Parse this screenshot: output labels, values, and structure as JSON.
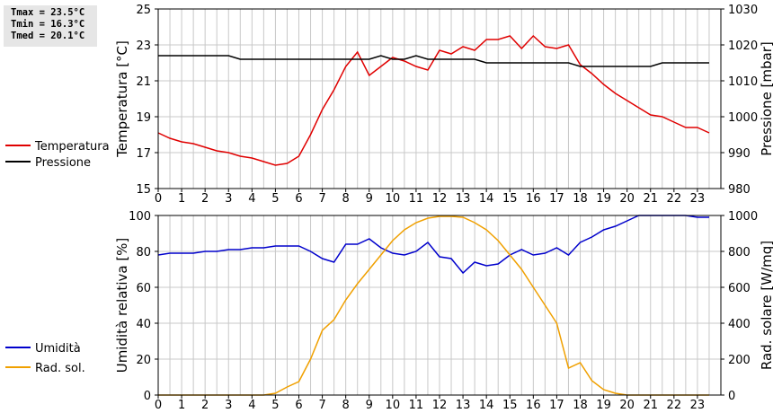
{
  "stats": {
    "tmax": "Tmax = 23.5°C",
    "tmin": "Tmin = 16.3°C",
    "tmed": "Tmed = 20.1°C"
  },
  "colors": {
    "temperatura": "#e00000",
    "pressione": "#000000",
    "umidita": "#0000cc",
    "rad_sol": "#f0a000",
    "grid": "#c8c8c8"
  },
  "chart_data": [
    {
      "type": "line",
      "xlabel": "",
      "ylabel": "Temperatura [°C]",
      "y2label": "Pressione [mbar]",
      "xlim": [
        0,
        24
      ],
      "ylim": [
        15,
        25
      ],
      "y2lim": [
        980,
        1030
      ],
      "x_ticks": [
        "0",
        "1",
        "2",
        "3",
        "4",
        "5",
        "6",
        "7",
        "8",
        "9",
        "10",
        "11",
        "12",
        "13",
        "14",
        "15",
        "16",
        "17",
        "18",
        "19",
        "20",
        "21",
        "22",
        "23"
      ],
      "y_ticks": [
        "15",
        "17",
        "19",
        "21",
        "23",
        "25"
      ],
      "y2_ticks": [
        "980",
        "990",
        "1000",
        "1010",
        "1020",
        "1030"
      ],
      "grid": true,
      "legend_position": "left",
      "series": [
        {
          "name": "Temperatura",
          "axis": "left",
          "x": [
            0,
            0.5,
            1,
            1.5,
            2,
            2.5,
            3,
            3.5,
            4,
            4.5,
            5,
            5.5,
            6,
            6.5,
            7,
            7.5,
            8,
            8.5,
            9,
            9.5,
            10,
            10.5,
            11,
            11.5,
            12,
            12.5,
            13,
            13.5,
            14,
            14.5,
            15,
            15.5,
            16,
            16.5,
            17,
            17.5,
            18,
            18.5,
            19,
            19.5,
            20,
            20.5,
            21,
            21.5,
            22,
            22.5,
            23,
            23.5
          ],
          "values": [
            18.1,
            17.8,
            17.6,
            17.5,
            17.3,
            17.1,
            17.0,
            16.8,
            16.7,
            16.5,
            16.3,
            16.4,
            16.8,
            18.0,
            19.4,
            20.5,
            21.8,
            22.6,
            21.3,
            21.8,
            22.3,
            22.1,
            21.8,
            21.6,
            22.7,
            22.5,
            22.9,
            22.7,
            23.3,
            23.3,
            23.5,
            22.8,
            23.5,
            22.9,
            22.8,
            23.0,
            21.9,
            21.4,
            20.8,
            20.3,
            19.9,
            19.5,
            19.1,
            19.0,
            18.7,
            18.4,
            18.4,
            18.1
          ]
        },
        {
          "name": "Pressione",
          "axis": "right",
          "x": [
            0,
            0.5,
            1,
            1.5,
            2,
            2.5,
            3,
            3.5,
            4,
            4.5,
            5,
            5.5,
            6,
            6.5,
            7,
            7.5,
            8,
            8.5,
            9,
            9.5,
            10,
            10.5,
            11,
            11.5,
            12,
            12.5,
            13,
            13.5,
            14,
            14.5,
            15,
            15.5,
            16,
            16.5,
            17,
            17.5,
            18,
            18.5,
            19,
            19.5,
            20,
            20.5,
            21,
            21.5,
            22,
            22.5,
            23,
            23.5
          ],
          "values": [
            1017,
            1017,
            1017,
            1017,
            1017,
            1017,
            1017,
            1016,
            1016,
            1016,
            1016,
            1016,
            1016,
            1016,
            1016,
            1016,
            1016,
            1016,
            1016,
            1017,
            1016,
            1016,
            1017,
            1016,
            1016,
            1016,
            1016,
            1016,
            1015,
            1015,
            1015,
            1015,
            1015,
            1015,
            1015,
            1015,
            1014,
            1014,
            1014,
            1014,
            1014,
            1014,
            1014,
            1015,
            1015,
            1015,
            1015,
            1015
          ]
        }
      ]
    },
    {
      "type": "line",
      "xlabel": "",
      "ylabel": "Umidità relativa [%]",
      "y2label": "Rad. solare [W/mq]",
      "xlim": [
        0,
        24
      ],
      "ylim": [
        0,
        100
      ],
      "y2lim": [
        0,
        1000
      ],
      "x_ticks": [
        "0",
        "1",
        "2",
        "3",
        "4",
        "5",
        "6",
        "7",
        "8",
        "9",
        "10",
        "11",
        "12",
        "13",
        "14",
        "15",
        "16",
        "17",
        "18",
        "19",
        "20",
        "21",
        "22",
        "23"
      ],
      "y_ticks": [
        "0",
        "20",
        "40",
        "60",
        "80",
        "100"
      ],
      "y2_ticks": [
        "0",
        "200",
        "400",
        "600",
        "800",
        "1000"
      ],
      "grid": true,
      "legend_position": "left",
      "series": [
        {
          "name": "Umidità",
          "axis": "left",
          "x": [
            0,
            0.5,
            1,
            1.5,
            2,
            2.5,
            3,
            3.5,
            4,
            4.5,
            5,
            5.5,
            6,
            6.5,
            7,
            7.5,
            8,
            8.5,
            9,
            9.5,
            10,
            10.5,
            11,
            11.5,
            12,
            12.5,
            13,
            13.5,
            14,
            14.5,
            15,
            15.5,
            16,
            16.5,
            17,
            17.5,
            18,
            18.5,
            19,
            19.5,
            20,
            20.5,
            21,
            21.5,
            22,
            22.5,
            23,
            23.5
          ],
          "values": [
            78,
            79,
            79,
            79,
            80,
            80,
            81,
            81,
            82,
            82,
            83,
            83,
            83,
            80,
            76,
            74,
            84,
            84,
            87,
            82,
            79,
            78,
            80,
            85,
            77,
            76,
            68,
            74,
            72,
            73,
            78,
            81,
            78,
            79,
            82,
            78,
            85,
            88,
            92,
            94,
            97,
            100,
            100,
            100,
            100,
            100,
            99,
            99
          ]
        },
        {
          "name": "Rad. sol.",
          "axis": "right",
          "x": [
            0,
            0.5,
            1,
            1.5,
            2,
            2.5,
            3,
            3.5,
            4,
            4.5,
            5,
            5.5,
            6,
            6.5,
            7,
            7.5,
            8,
            8.5,
            9,
            9.5,
            10,
            10.5,
            11,
            11.5,
            12,
            12.5,
            13,
            13.5,
            14,
            14.5,
            15,
            15.5,
            16,
            16.5,
            17,
            17.5,
            18,
            18.5,
            19,
            19.5,
            20,
            20.5,
            21,
            21.5,
            22,
            22.5,
            23,
            23.5
          ],
          "values": [
            0,
            0,
            0,
            0,
            0,
            0,
            0,
            0,
            0,
            0,
            10,
            45,
            75,
            200,
            360,
            420,
            530,
            620,
            700,
            780,
            860,
            920,
            960,
            985,
            995,
            995,
            990,
            960,
            920,
            860,
            780,
            700,
            600,
            500,
            400,
            150,
            180,
            80,
            30,
            10,
            0,
            0,
            0,
            0,
            0,
            0,
            0,
            0
          ]
        }
      ]
    }
  ]
}
